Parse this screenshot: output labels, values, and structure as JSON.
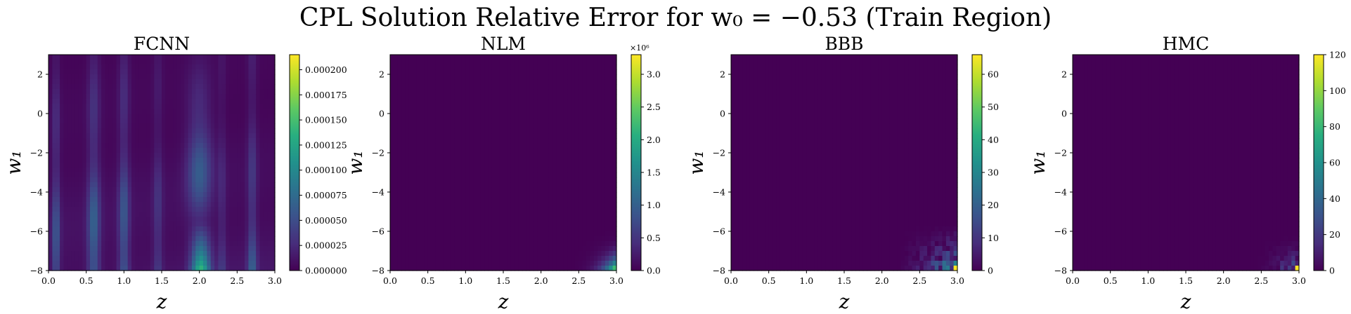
{
  "title": "CPL Solution Relative Error for w₀ = −0.53 (Train Region)",
  "chart_data": [
    {
      "type": "heatmap",
      "title": "FCNN",
      "xlabel": "z",
      "ylabel": "w₁",
      "xlim": [
        0.0,
        3.0
      ],
      "ylim": [
        -8,
        3
      ],
      "xticks": [
        "0.0",
        "0.5",
        "1.0",
        "1.5",
        "2.0",
        "2.5",
        "3.0"
      ],
      "yticks": [
        "2",
        "0",
        "−2",
        "−4",
        "−6",
        "−8"
      ],
      "colorbar": {
        "ticks": [
          "0.000000",
          "0.000025",
          "0.000050",
          "0.000075",
          "0.000100",
          "0.000125",
          "0.000150",
          "0.000175",
          "0.000200"
        ],
        "min": 0,
        "max": 0.000215
      },
      "grid": false,
      "colormap": "viridis",
      "pattern": "vertical bands of error across z with peaks near z = 0.6, 1.0, 2.0, 2.7; maximum near z = 2.0, w1 = -8"
    },
    {
      "type": "heatmap",
      "title": "NLM",
      "xlabel": "z",
      "ylabel": "w₁",
      "xlim": [
        0.0,
        3.0
      ],
      "ylim": [
        -8,
        3
      ],
      "xticks": [
        "0.0",
        "0.5",
        "1.0",
        "1.5",
        "2.0",
        "2.5",
        "3.0"
      ],
      "yticks": [
        "2",
        "0",
        "−2",
        "−4",
        "−6",
        "−8"
      ],
      "colorbar": {
        "ticks": [
          "0.0",
          "0.5",
          "1.0",
          "1.5",
          "2.0",
          "2.5",
          "3.0"
        ],
        "multiplier": "×10⁶",
        "min": 0,
        "max": 3.3
      },
      "grid": false,
      "colormap": "viridis",
      "pattern": "near zero everywhere except the bottom-right corner (z near 3.0, w1 near -8)"
    },
    {
      "type": "heatmap",
      "title": "BBB",
      "xlabel": "z",
      "ylabel": "w₁",
      "xlim": [
        0.0,
        3.0
      ],
      "ylim": [
        -8,
        3
      ],
      "xticks": [
        "0.0",
        "0.5",
        "1.0",
        "1.5",
        "2.0",
        "2.5",
        "3.0"
      ],
      "yticks": [
        "2",
        "0",
        "−2",
        "−4",
        "−6",
        "−8"
      ],
      "colorbar": {
        "ticks": [
          "0",
          "10",
          "20",
          "30",
          "40",
          "50",
          "60"
        ],
        "min": 0,
        "max": 66
      },
      "grid": false,
      "colormap": "viridis",
      "pattern": "near zero except noisy cells in bottom-right corner (z > 2.3, w1 < -6)"
    },
    {
      "type": "heatmap",
      "title": "HMC",
      "xlabel": "z",
      "ylabel": "w₁",
      "xlim": [
        0.0,
        3.0
      ],
      "ylim": [
        -8,
        3
      ],
      "xticks": [
        "0.0",
        "0.5",
        "1.0",
        "1.5",
        "2.0",
        "2.5",
        "3.0"
      ],
      "yticks": [
        "2",
        "0",
        "−2",
        "−4",
        "−6",
        "−8"
      ],
      "colorbar": {
        "ticks": [
          "0",
          "20",
          "40",
          "60",
          "80",
          "100",
          "120"
        ],
        "min": 0,
        "max": 120
      },
      "grid": false,
      "colormap": "viridis",
      "pattern": "near zero except sparse noisy cells in bottom-right corner (z > 2.4, w1 < -6.5)"
    }
  ]
}
